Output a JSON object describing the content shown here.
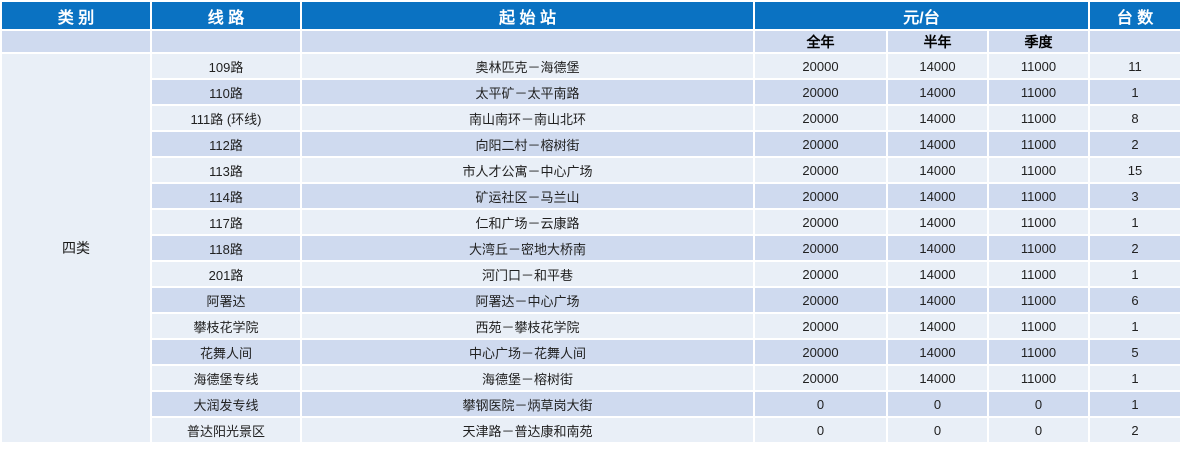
{
  "colors": {
    "header_bg": "#0A72C2",
    "header_text": "#FFFFFF",
    "row_light": "#E9EFF7",
    "row_dark": "#CFDAEF",
    "text": "#212121"
  },
  "table": {
    "header": {
      "category": "类 别",
      "line": "线 路",
      "stations": "起 始 站",
      "price_group": "元/台",
      "units": "台 数"
    },
    "subheader": {
      "full_year": "全年",
      "half_year": "半年",
      "quarter": "季度"
    },
    "category_label": "四类",
    "rows": [
      {
        "line": "109路",
        "stations": "奥林匹克－海德堡",
        "full_year": "20000",
        "half_year": "14000",
        "quarter": "11000",
        "units": "11"
      },
      {
        "line": "110路",
        "stations": "太平矿－太平南路",
        "full_year": "20000",
        "half_year": "14000",
        "quarter": "11000",
        "units": "1"
      },
      {
        "line": "111路 (环线)",
        "stations": "南山南环－南山北环",
        "full_year": "20000",
        "half_year": "14000",
        "quarter": "11000",
        "units": "8"
      },
      {
        "line": "112路",
        "stations": "向阳二村－榕树街",
        "full_year": "20000",
        "half_year": "14000",
        "quarter": "11000",
        "units": "2"
      },
      {
        "line": "113路",
        "stations": "市人才公寓－中心广场",
        "full_year": "20000",
        "half_year": "14000",
        "quarter": "11000",
        "units": "15"
      },
      {
        "line": "114路",
        "stations": "矿运社区－马兰山",
        "full_year": "20000",
        "half_year": "14000",
        "quarter": "11000",
        "units": "3"
      },
      {
        "line": "117路",
        "stations": "仁和广场－云康路",
        "full_year": "20000",
        "half_year": "14000",
        "quarter": "11000",
        "units": "1"
      },
      {
        "line": "118路",
        "stations": "大湾丘－密地大桥南",
        "full_year": "20000",
        "half_year": "14000",
        "quarter": "11000",
        "units": "2"
      },
      {
        "line": "201路",
        "stations": "河门口－和平巷",
        "full_year": "20000",
        "half_year": "14000",
        "quarter": "11000",
        "units": "1"
      },
      {
        "line": "阿署达",
        "stations": "阿署达－中心广场",
        "full_year": "20000",
        "half_year": "14000",
        "quarter": "11000",
        "units": "6"
      },
      {
        "line": "攀枝花学院",
        "stations": "西苑－攀枝花学院",
        "full_year": "20000",
        "half_year": "14000",
        "quarter": "11000",
        "units": "1"
      },
      {
        "line": "花舞人间",
        "stations": "中心广场－花舞人间",
        "full_year": "20000",
        "half_year": "14000",
        "quarter": "11000",
        "units": "5"
      },
      {
        "line": "海德堡专线",
        "stations": "海德堡－榕树街",
        "full_year": "20000",
        "half_year": "14000",
        "quarter": "11000",
        "units": "1"
      },
      {
        "line": "大润发专线",
        "stations": "攀钢医院－炳草岗大街",
        "full_year": "0",
        "half_year": "0",
        "quarter": "0",
        "units": "1"
      },
      {
        "line": "普达阳光景区",
        "stations": "天津路－普达康和南苑",
        "full_year": "0",
        "half_year": "0",
        "quarter": "0",
        "units": "2"
      }
    ]
  }
}
